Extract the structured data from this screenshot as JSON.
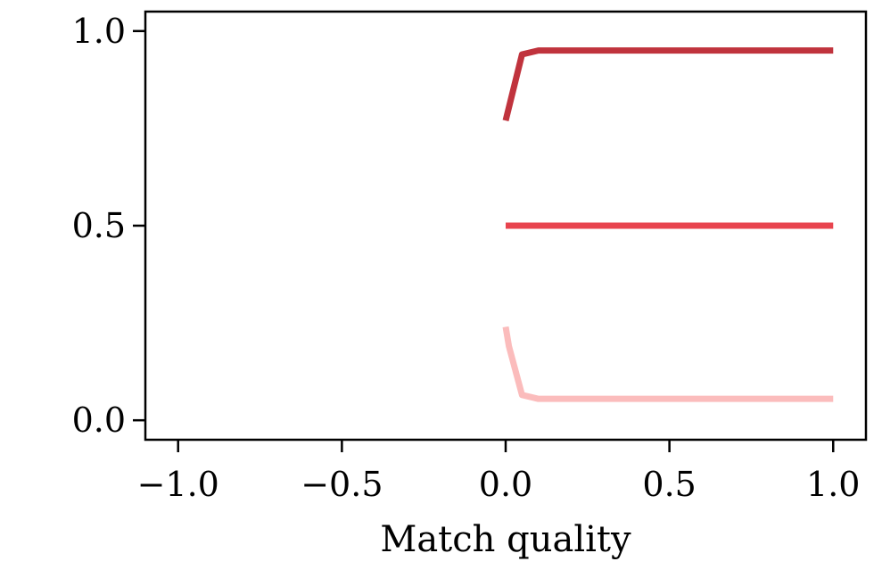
{
  "chart_data": {
    "type": "line",
    "title": "",
    "xlabel": "Match quality",
    "ylabel": "",
    "xlim": [
      -1.1,
      1.1
    ],
    "ylim": [
      -0.05,
      1.05
    ],
    "grid": false,
    "legend": "none",
    "x_ticks": [
      {
        "value": -1.0,
        "label": "−1.0"
      },
      {
        "value": -0.5,
        "label": "−0.5"
      },
      {
        "value": 0.0,
        "label": "0.0"
      },
      {
        "value": 0.5,
        "label": "0.5"
      },
      {
        "value": 1.0,
        "label": "1.0"
      }
    ],
    "y_ticks": [
      {
        "value": 0.0,
        "label": "0.0"
      },
      {
        "value": 0.5,
        "label": "0.5"
      },
      {
        "value": 1.0,
        "label": "1.0"
      }
    ],
    "series": [
      {
        "color": "#c0333d",
        "x": [
          0.0,
          0.05,
          0.1,
          0.2,
          0.4,
          0.6,
          0.8,
          1.0
        ],
        "y": [
          0.77,
          0.94,
          0.95,
          0.95,
          0.95,
          0.95,
          0.95,
          0.95
        ]
      },
      {
        "color": "#e8444e",
        "x": [
          0.0,
          0.2,
          0.4,
          0.6,
          0.8,
          1.0
        ],
        "y": [
          0.5,
          0.5,
          0.5,
          0.5,
          0.5,
          0.5
        ]
      },
      {
        "color": "#fbbcbc",
        "x": [
          0.0,
          0.01,
          0.05,
          0.1,
          0.2,
          0.4,
          0.6,
          0.8,
          1.0
        ],
        "y": [
          0.24,
          0.19,
          0.065,
          0.055,
          0.055,
          0.055,
          0.055,
          0.055,
          0.055
        ]
      }
    ]
  }
}
